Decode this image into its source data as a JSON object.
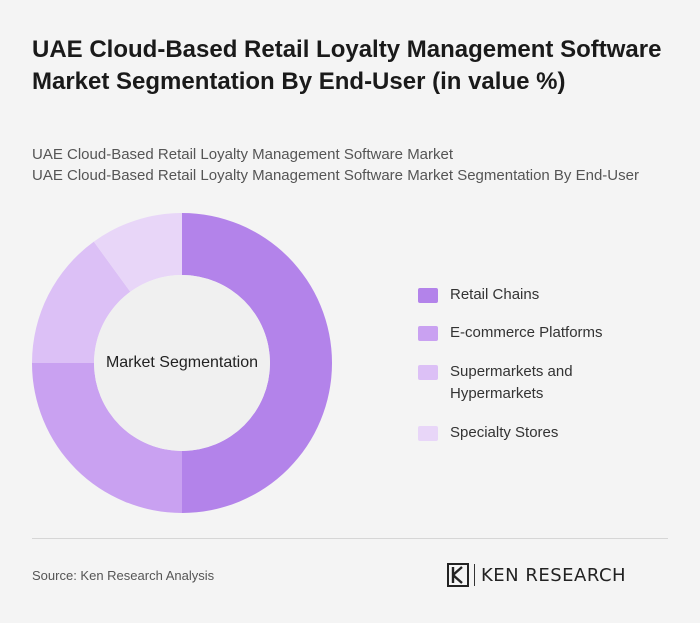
{
  "title": "UAE Cloud-Based Retail Loyalty Management Software Market Segmentation By End-User (in value %)",
  "subtitle_line1": "UAE Cloud-Based Retail Loyalty Management Software Market",
  "subtitle_line2": "UAE Cloud-Based Retail Loyalty Management Software Market Segmentation By End-User",
  "source": "Source: Ken Research Analysis",
  "logo_text": "KEN RESEARCH",
  "chart_data": {
    "type": "pie",
    "center_label": "Market Segmentation",
    "categories": [
      "Retail Chains",
      "E-commerce Platforms",
      "Supermarkets and Hypermarkets",
      "Specialty Stores"
    ],
    "values": [
      50,
      25,
      15,
      10
    ],
    "colors": [
      "#b383ea",
      "#c9a1f1",
      "#dcc0f6",
      "#e8d6f8"
    ],
    "legend_position": "right"
  }
}
